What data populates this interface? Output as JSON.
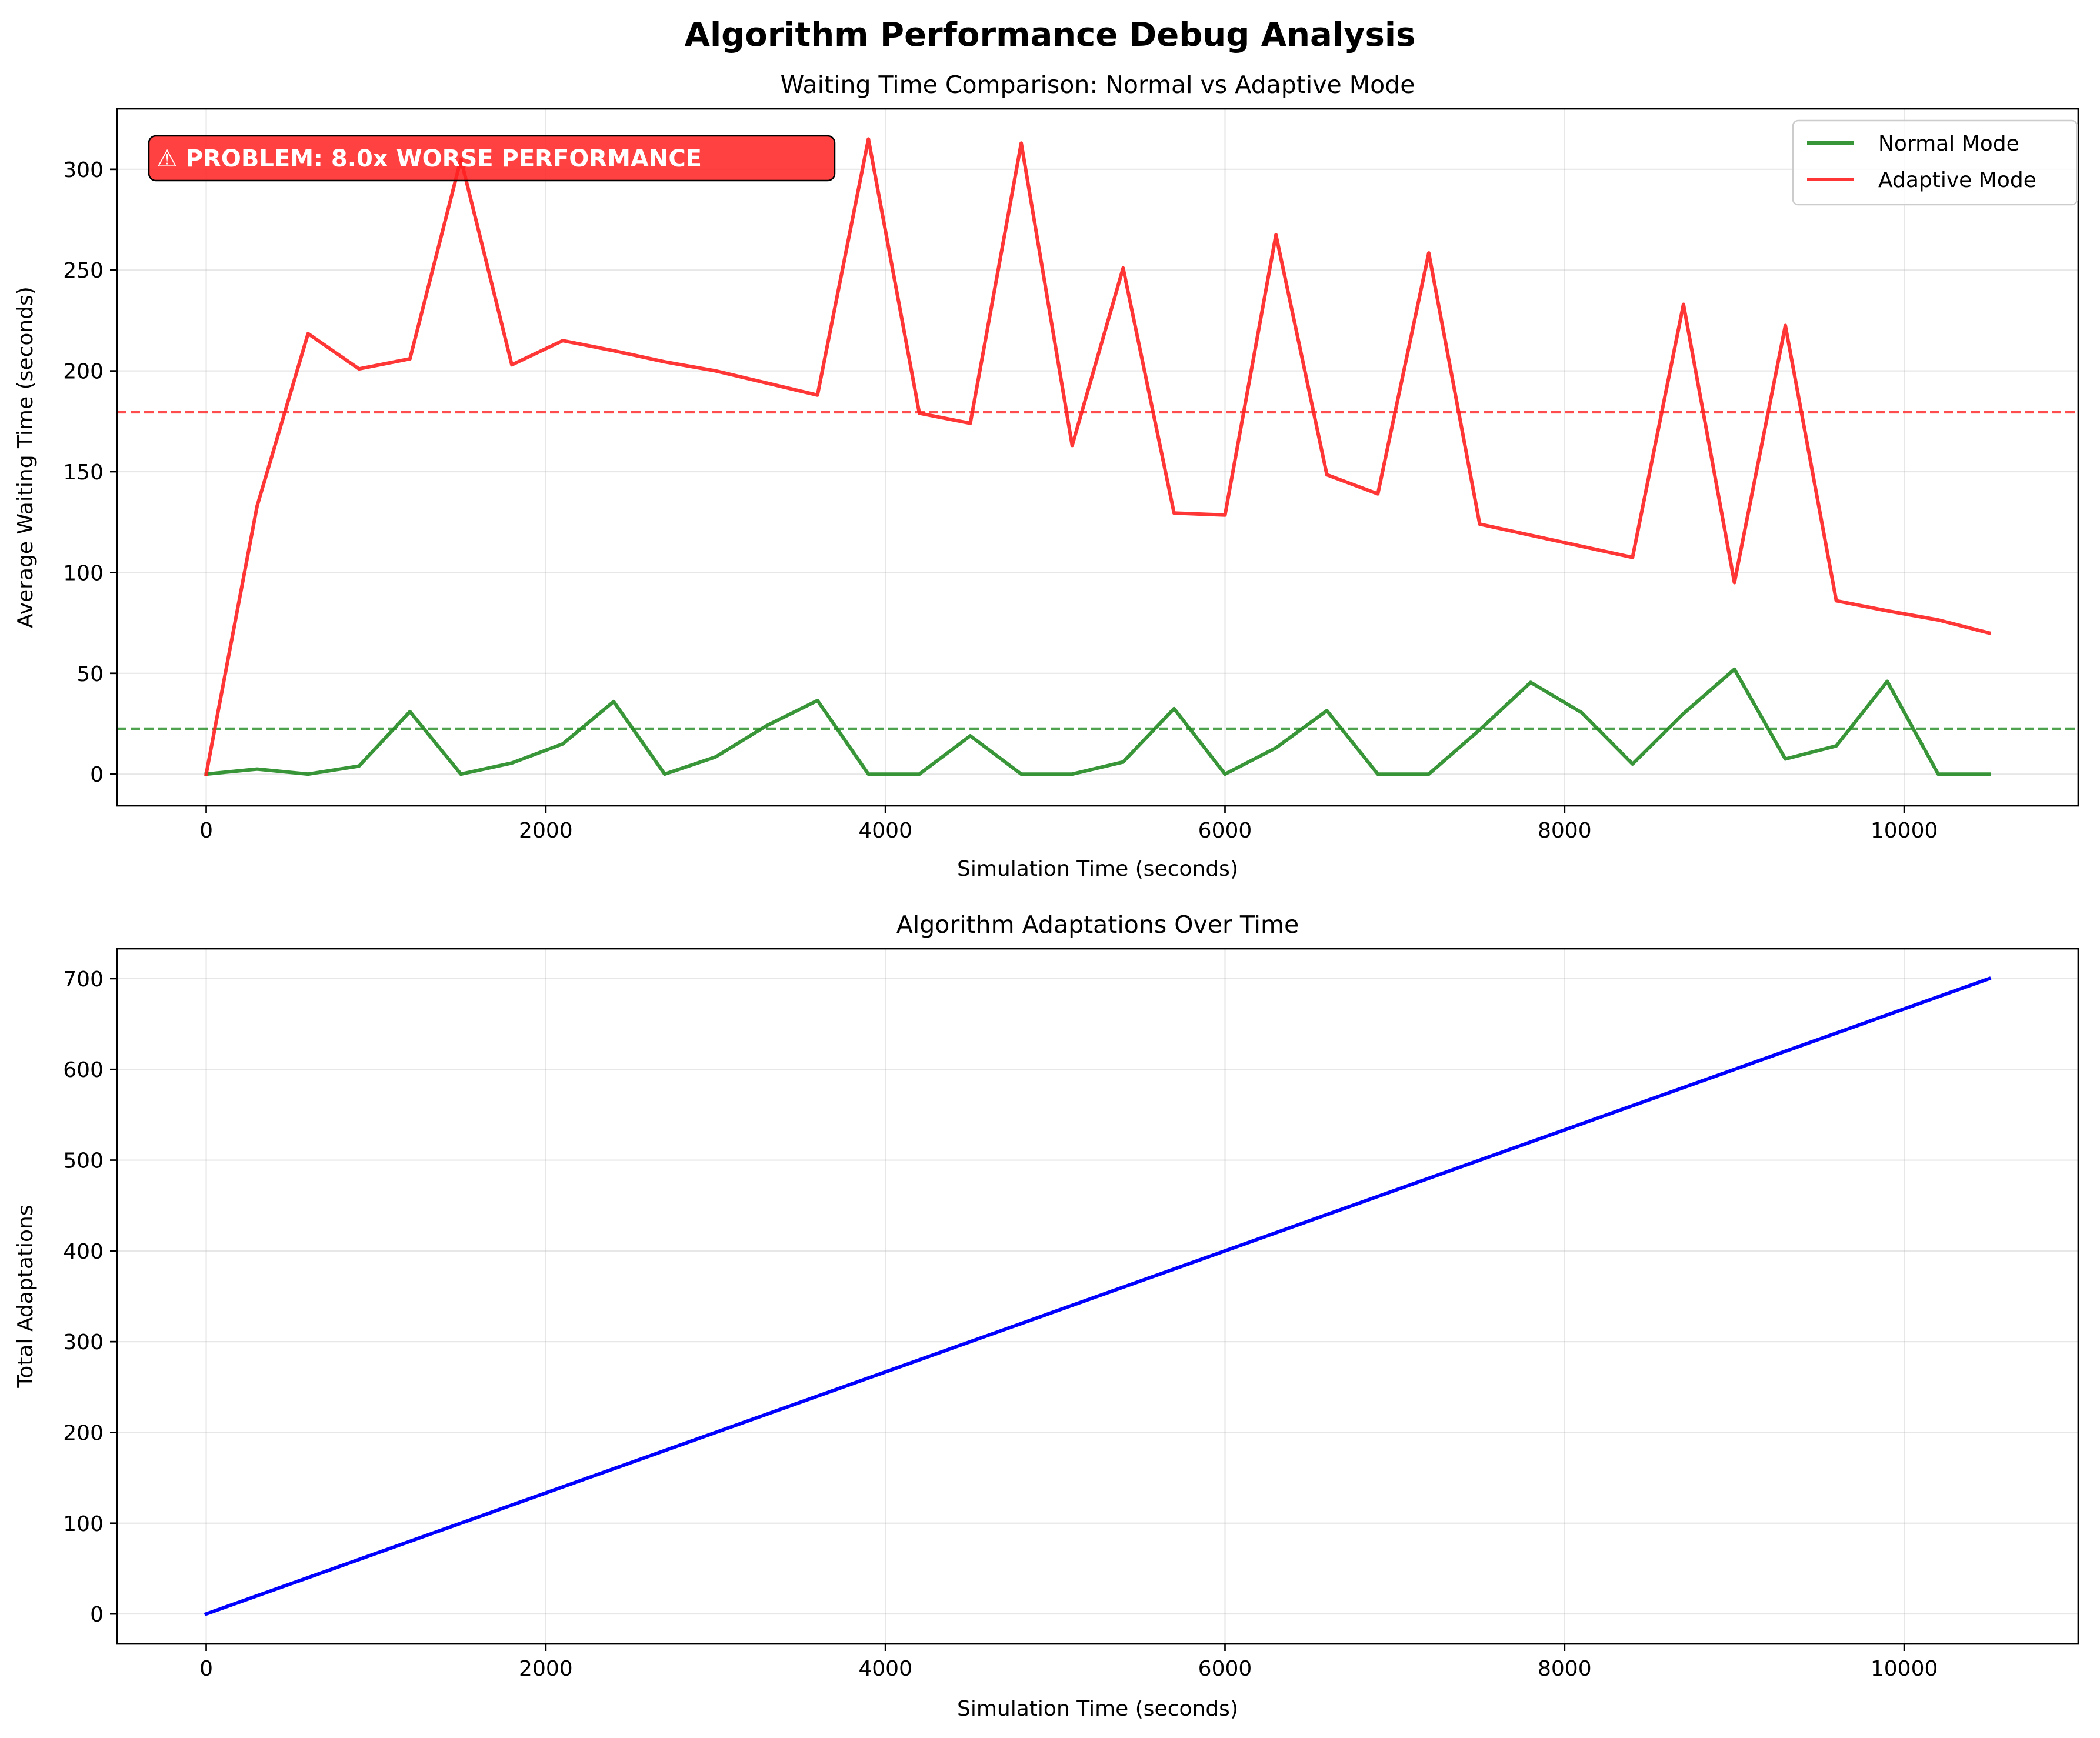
{
  "figure": {
    "suptitle": "Algorithm Performance Debug Analysis"
  },
  "chart_data": [
    {
      "type": "line",
      "title": "Waiting Time Comparison: Normal vs Adaptive Mode",
      "xlabel": "Simulation Time (seconds)",
      "ylabel": "Average Waiting Time (seconds)",
      "xlim": [
        -525,
        11025
      ],
      "ylim": [
        -15.7,
        330
      ],
      "xticks": [
        0,
        2000,
        4000,
        6000,
        8000,
        10000
      ],
      "yticks": [
        0,
        50,
        100,
        150,
        200,
        250,
        300
      ],
      "grid": true,
      "legend": "top-right",
      "x": [
        0,
        300,
        600,
        900,
        1200,
        1500,
        1800,
        2100,
        2400,
        2700,
        3000,
        3300,
        3600,
        3900,
        4200,
        4500,
        4800,
        5100,
        5400,
        5700,
        6000,
        6300,
        6600,
        6900,
        7200,
        7500,
        7800,
        8100,
        8400,
        8700,
        9000,
        9300,
        9600,
        9900,
        10200,
        10500
      ],
      "series": [
        {
          "name": "Normal Mode",
          "color": "#228B22",
          "values": [
            0,
            2.5,
            0,
            4,
            31,
            0,
            5.5,
            15,
            36,
            0,
            8.5,
            24,
            36.5,
            0,
            0,
            19,
            0,
            0,
            6,
            32.5,
            0,
            13,
            31.5,
            0,
            0,
            22,
            45.5,
            30.5,
            5,
            30,
            52,
            7.5,
            14,
            46,
            0,
            0
          ]
        },
        {
          "name": "Adaptive Mode",
          "color": "#FF2020",
          "values": [
            0,
            133,
            218.5,
            201,
            206,
            305,
            203,
            215,
            210,
            204.5,
            200,
            194,
            188,
            315,
            179,
            174,
            313,
            163,
            251,
            129.5,
            128.5,
            267.5,
            148.5,
            139,
            258.5,
            124,
            118.5,
            113,
            107.5,
            233,
            95,
            222.5,
            86,
            81,
            76.5,
            70
          ]
        }
      ],
      "reference_lines": [
        {
          "series": "Normal Mode",
          "y": 22.5,
          "color": "#228B22"
        },
        {
          "series": "Adaptive Mode",
          "y": 179.5,
          "color": "#FF2020"
        }
      ],
      "annotation": {
        "text": "⚠ PROBLEM: 8.0x WORSE PERFORMANCE",
        "background": "#FF2020"
      }
    },
    {
      "type": "line",
      "title": "Algorithm Adaptations Over Time",
      "xlabel": "Simulation Time (seconds)",
      "ylabel": "Total Adaptations",
      "xlim": [
        -525,
        11025
      ],
      "ylim": [
        -33,
        733
      ],
      "xticks": [
        0,
        2000,
        4000,
        6000,
        8000,
        10000
      ],
      "yticks": [
        0,
        100,
        200,
        300,
        400,
        500,
        600,
        700
      ],
      "grid": true,
      "x": [
        0,
        10500
      ],
      "series": [
        {
          "color": "#0000FF",
          "values": [
            0,
            700
          ]
        }
      ]
    }
  ]
}
